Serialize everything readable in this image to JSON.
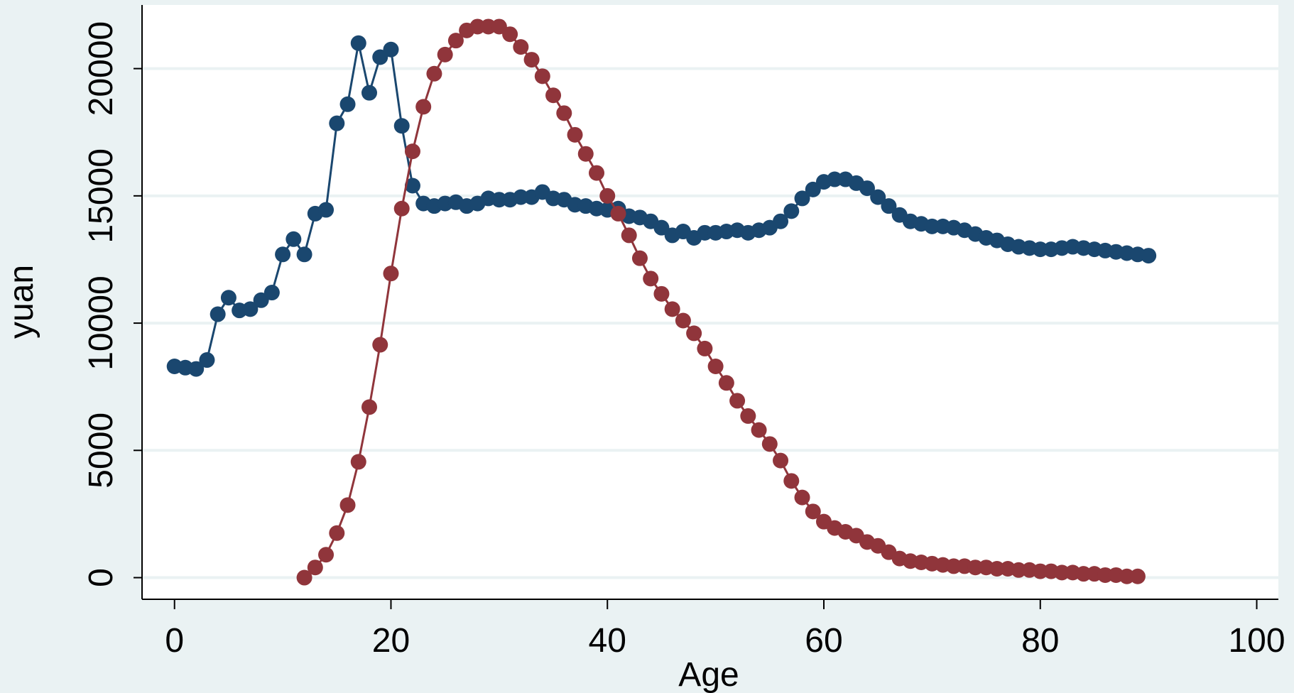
{
  "chart_data": {
    "type": "line",
    "title": "",
    "xlabel": "Age",
    "ylabel": "yuan",
    "xlim": [
      -3,
      102
    ],
    "ylim": [
      -850,
      22500
    ],
    "x_ticks": [
      0,
      20,
      40,
      60,
      80,
      100
    ],
    "x_tick_labels": [
      "0",
      "20",
      "40",
      "60",
      "80",
      "100"
    ],
    "y_ticks": [
      0,
      5000,
      10000,
      15000,
      20000
    ],
    "y_tick_labels": [
      "0",
      "5000",
      "10000",
      "15000",
      "20000"
    ],
    "grid": true,
    "legend": "none",
    "series": [
      {
        "color": "#1a476f",
        "marker": "circle",
        "x": [
          0,
          1,
          2,
          3,
          4,
          5,
          6,
          7,
          8,
          9,
          10,
          11,
          12,
          13,
          14,
          15,
          16,
          17,
          18,
          19,
          20,
          21,
          22,
          23,
          24,
          25,
          26,
          27,
          28,
          29,
          30,
          31,
          32,
          33,
          34,
          35,
          36,
          37,
          38,
          39,
          40,
          41,
          42,
          43,
          44,
          45,
          46,
          47,
          48,
          49,
          50,
          51,
          52,
          53,
          54,
          55,
          56,
          57,
          58,
          59,
          60,
          61,
          62,
          63,
          64,
          65,
          66,
          67,
          68,
          69,
          70,
          71,
          72,
          73,
          74,
          75,
          76,
          77,
          78,
          79,
          80,
          81,
          82,
          83,
          84,
          85,
          86,
          87,
          88,
          89,
          90
        ],
        "y": [
          8300,
          8250,
          8200,
          8550,
          10350,
          11000,
          10500,
          10550,
          10900,
          11200,
          12700,
          13300,
          12700,
          14300,
          14450,
          17850,
          18600,
          21000,
          19050,
          20450,
          20750,
          17750,
          15400,
          14700,
          14600,
          14700,
          14750,
          14600,
          14700,
          14900,
          14850,
          14850,
          14950,
          14950,
          15150,
          14900,
          14850,
          14650,
          14600,
          14500,
          14450,
          14500,
          14200,
          14150,
          14000,
          13750,
          13450,
          13600,
          13350,
          13550,
          13550,
          13600,
          13650,
          13550,
          13650,
          13750,
          14000,
          14400,
          14900,
          15250,
          15550,
          15650,
          15650,
          15500,
          15300,
          14950,
          14600,
          14250,
          14000,
          13900,
          13800,
          13800,
          13750,
          13650,
          13500,
          13350,
          13250,
          13100,
          13000,
          12950,
          12900,
          12900,
          12950,
          13000,
          12950,
          12900,
          12850,
          12800,
          12750,
          12700,
          12650
        ]
      },
      {
        "color": "#90353b",
        "marker": "circle",
        "x": [
          12,
          13,
          14,
          15,
          16,
          17,
          18,
          19,
          20,
          21,
          22,
          23,
          24,
          25,
          26,
          27,
          28,
          29,
          30,
          31,
          32,
          33,
          34,
          35,
          36,
          37,
          38,
          39,
          40,
          41,
          42,
          43,
          44,
          45,
          46,
          47,
          48,
          49,
          50,
          51,
          52,
          53,
          54,
          55,
          56,
          57,
          58,
          59,
          60,
          61,
          62,
          63,
          64,
          65,
          66,
          67,
          68,
          69,
          70,
          71,
          72,
          73,
          74,
          75,
          76,
          77,
          78,
          79,
          80,
          81,
          82,
          83,
          84,
          85,
          86,
          87,
          88,
          89
        ],
        "y": [
          0,
          400,
          900,
          1750,
          2850,
          4550,
          6700,
          9150,
          11950,
          14500,
          16750,
          18500,
          19800,
          20550,
          21100,
          21500,
          21650,
          21650,
          21650,
          21350,
          20850,
          20350,
          19700,
          18950,
          18250,
          17400,
          16650,
          15900,
          15000,
          14300,
          13450,
          12550,
          11750,
          11150,
          10550,
          10100,
          9600,
          9000,
          8300,
          7650,
          6950,
          6350,
          5800,
          5250,
          4600,
          3800,
          3150,
          2600,
          2200,
          1950,
          1800,
          1650,
          1400,
          1250,
          1000,
          750,
          650,
          600,
          550,
          500,
          450,
          450,
          400,
          400,
          350,
          350,
          300,
          300,
          250,
          250,
          200,
          200,
          150,
          150,
          100,
          100,
          50,
          50
        ]
      }
    ]
  }
}
